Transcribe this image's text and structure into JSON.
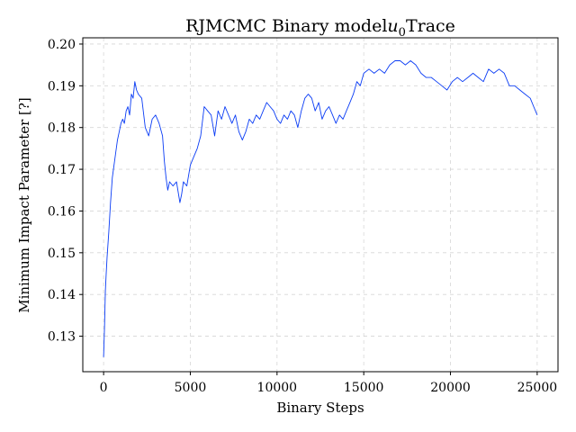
{
  "chart_data": {
    "type": "line",
    "title_prefix": "RJMCMC Binary model",
    "title_symbol": "u",
    "title_subscript": "0",
    "title_suffix": "Trace",
    "xlabel": "Binary Steps",
    "ylabel": "Minimum Impact Parameter [?]",
    "xlim": [
      -1200,
      26200
    ],
    "ylim": [
      0.1215,
      0.2015
    ],
    "xticks": [
      0,
      5000,
      10000,
      15000,
      20000,
      25000
    ],
    "yticks": [
      0.13,
      0.14,
      0.15,
      0.16,
      0.17,
      0.18,
      0.19,
      0.2
    ],
    "ytick_labels": [
      "0.13",
      "0.14",
      "0.15",
      "0.16",
      "0.17",
      "0.18",
      "0.19",
      "0.20"
    ],
    "grid": true,
    "series": [
      {
        "color": "#0a3cf5",
        "x": [
          0,
          50,
          100,
          150,
          200,
          300,
          400,
          500,
          600,
          700,
          800,
          900,
          1000,
          1100,
          1200,
          1300,
          1400,
          1500,
          1600,
          1700,
          1800,
          1900,
          2000,
          2200,
          2400,
          2600,
          2800,
          3000,
          3200,
          3400,
          3500,
          3600,
          3700,
          3800,
          4000,
          4200,
          4400,
          4500,
          4600,
          4800,
          5000,
          5200,
          5400,
          5600,
          5800,
          6000,
          6200,
          6400,
          6600,
          6800,
          7000,
          7200,
          7400,
          7600,
          7800,
          8000,
          8200,
          8400,
          8600,
          8800,
          9000,
          9200,
          9400,
          9600,
          9800,
          10000,
          10200,
          10400,
          10600,
          10800,
          11000,
          11200,
          11400,
          11600,
          11800,
          12000,
          12200,
          12400,
          12600,
          12800,
          13000,
          13200,
          13400,
          13600,
          13800,
          14000,
          14200,
          14400,
          14600,
          14800,
          15000,
          15300,
          15600,
          15900,
          16200,
          16500,
          16800,
          17100,
          17400,
          17700,
          18000,
          18300,
          18600,
          18900,
          19200,
          19500,
          19800,
          20100,
          20400,
          20700,
          21000,
          21300,
          21600,
          21900,
          22200,
          22500,
          22800,
          23100,
          23400,
          23700,
          24000,
          24300,
          24600,
          24800,
          25000
        ],
        "y": [
          0.125,
          0.132,
          0.141,
          0.145,
          0.149,
          0.155,
          0.162,
          0.168,
          0.171,
          0.174,
          0.177,
          0.179,
          0.181,
          0.182,
          0.181,
          0.184,
          0.185,
          0.183,
          0.188,
          0.187,
          0.191,
          0.189,
          0.188,
          0.187,
          0.18,
          0.178,
          0.182,
          0.183,
          0.181,
          0.178,
          0.172,
          0.168,
          0.165,
          0.167,
          0.166,
          0.167,
          0.162,
          0.164,
          0.167,
          0.166,
          0.171,
          0.173,
          0.175,
          0.178,
          0.185,
          0.184,
          0.183,
          0.178,
          0.184,
          0.182,
          0.185,
          0.183,
          0.181,
          0.183,
          0.179,
          0.177,
          0.179,
          0.182,
          0.181,
          0.183,
          0.182,
          0.184,
          0.186,
          0.185,
          0.184,
          0.182,
          0.181,
          0.183,
          0.182,
          0.184,
          0.183,
          0.18,
          0.184,
          0.187,
          0.188,
          0.187,
          0.184,
          0.186,
          0.182,
          0.184,
          0.185,
          0.183,
          0.181,
          0.183,
          0.182,
          0.184,
          0.186,
          0.188,
          0.191,
          0.19,
          0.193,
          0.194,
          0.193,
          0.194,
          0.193,
          0.195,
          0.196,
          0.196,
          0.195,
          0.196,
          0.195,
          0.193,
          0.192,
          0.192,
          0.191,
          0.19,
          0.189,
          0.191,
          0.192,
          0.191,
          0.192,
          0.193,
          0.192,
          0.191,
          0.194,
          0.193,
          0.194,
          0.193,
          0.19,
          0.19,
          0.189,
          0.188,
          0.187,
          0.185,
          0.183
        ]
      }
    ]
  }
}
